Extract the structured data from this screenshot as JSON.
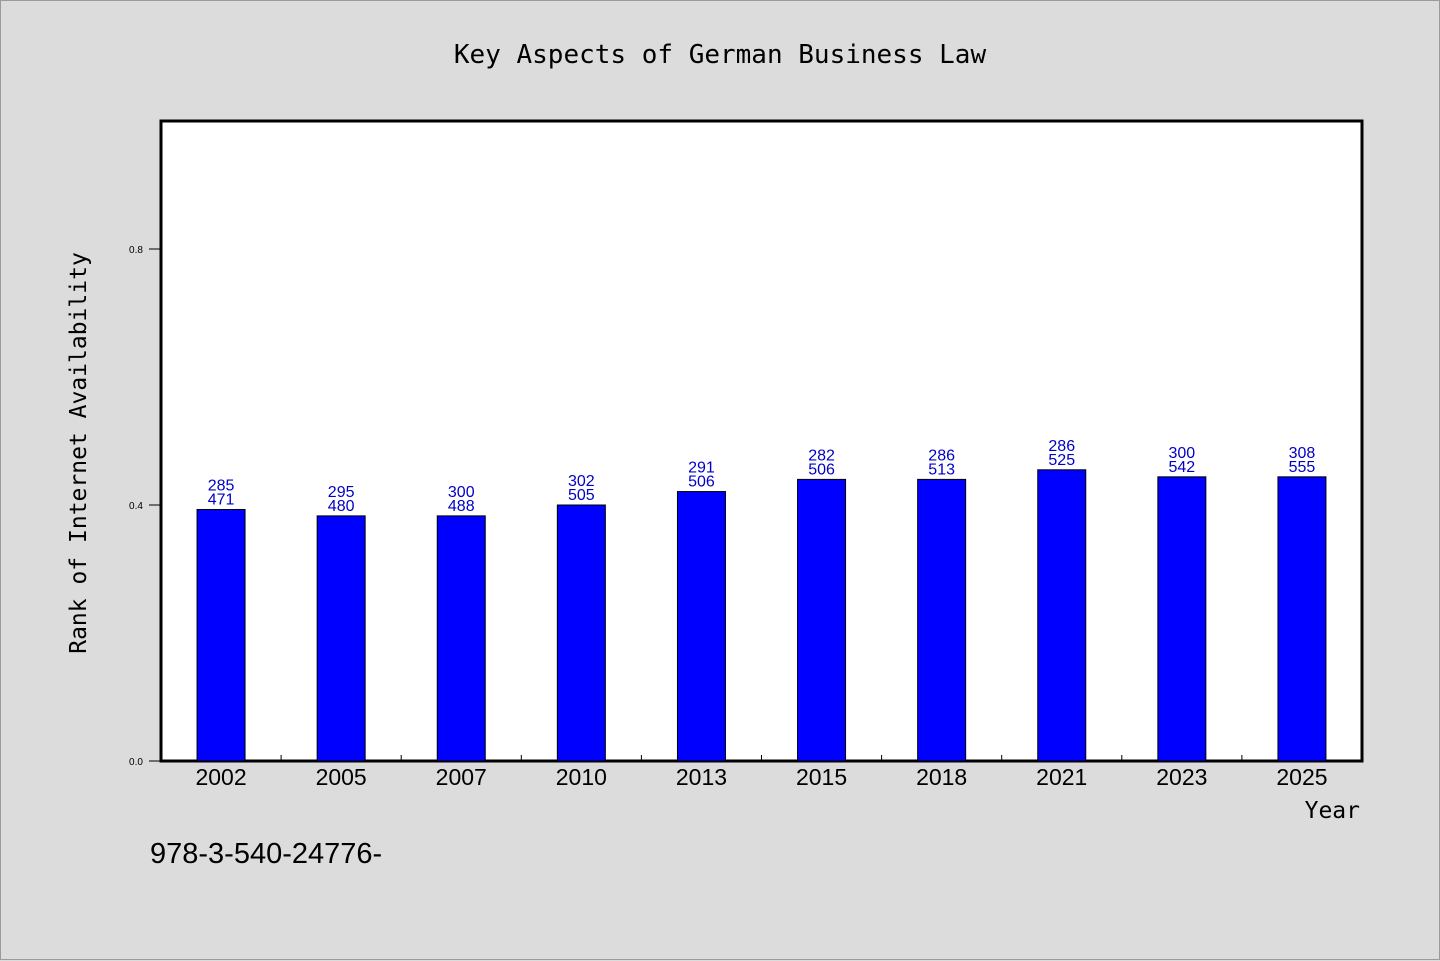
{
  "chart_data": {
    "type": "bar",
    "title": "Key Aspects of German Business Law",
    "xlabel": "Year",
    "ylabel": "Rank of Internet Availability",
    "categories": [
      "2002",
      "2005",
      "2007",
      "2010",
      "2013",
      "2015",
      "2018",
      "2021",
      "2023",
      "2025"
    ],
    "values": [
      0.393,
      0.383,
      0.383,
      0.4,
      0.421,
      0.44,
      0.44,
      0.455,
      0.444,
      0.444
    ],
    "bar_labels": [
      [
        "285",
        "471"
      ],
      [
        "295",
        "480"
      ],
      [
        "300",
        "488"
      ],
      [
        "302",
        "505"
      ],
      [
        "291",
        "506"
      ],
      [
        "282",
        "506"
      ],
      [
        "286",
        "513"
      ],
      [
        "286",
        "525"
      ],
      [
        "300",
        "542"
      ],
      [
        "308",
        "555"
      ]
    ],
    "yticks": [
      0.0,
      0.4,
      0.8
    ],
    "ytick_labels": [
      "0.0",
      "0.4",
      "0.8"
    ],
    "ylim": [
      0,
      1.0
    ],
    "grid": false,
    "legend": "none",
    "bar_color": "#0000ff",
    "label_color": "#0000c8",
    "footnote": "978-3-540-24776-"
  }
}
